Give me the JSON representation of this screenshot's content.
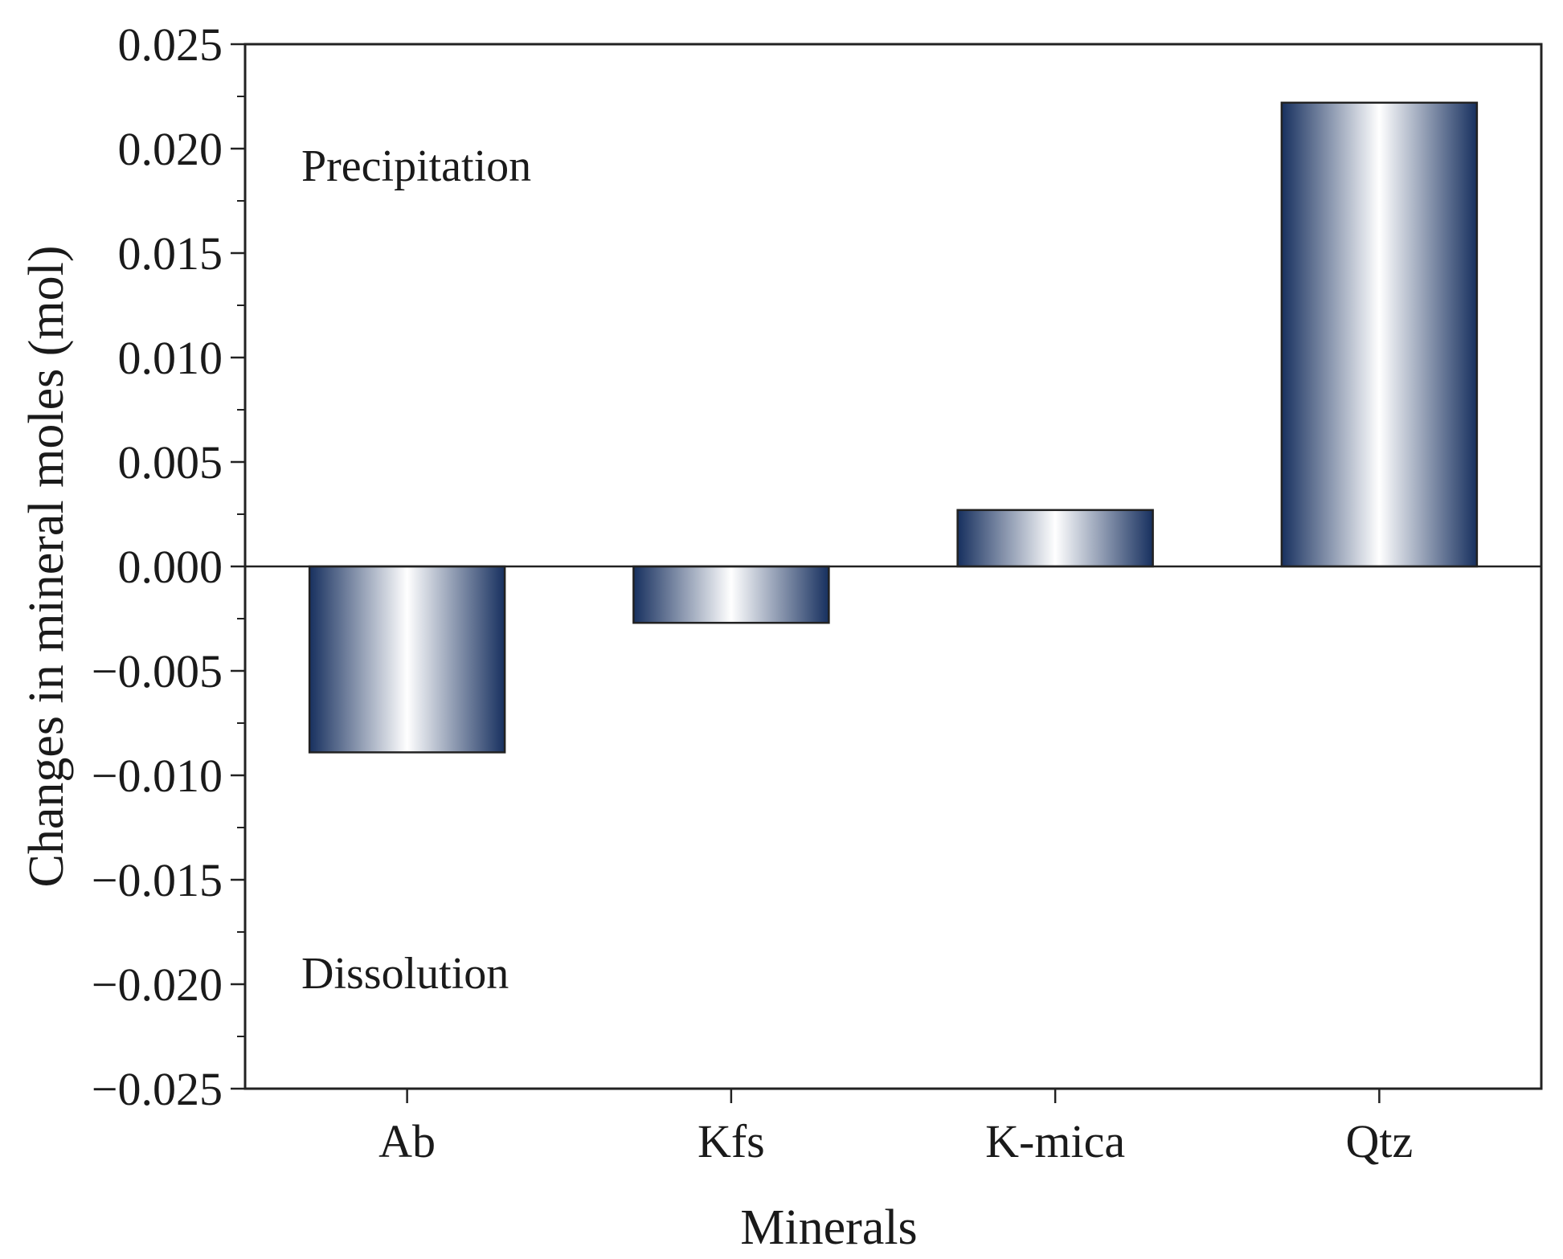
{
  "chart_data": {
    "type": "bar",
    "title": "",
    "xlabel": "Minerals",
    "ylabel": "Changes in mineral moles (mol)",
    "categories": [
      "Ab",
      "Kfs",
      "K-mica",
      "Qtz"
    ],
    "values": [
      -0.0089,
      -0.0027,
      0.0027,
      0.0222
    ],
    "ylim": [
      -0.025,
      0.025
    ],
    "yticks": [
      0.025,
      0.02,
      0.015,
      0.01,
      0.005,
      0.0,
      -0.005,
      -0.01,
      -0.015,
      -0.02,
      -0.025
    ],
    "ytick_labels": [
      "0.025",
      "0.020",
      "0.015",
      "0.010",
      "0.005",
      "0.000",
      "−0.005",
      "−0.010",
      "−0.015",
      "−0.020",
      "−0.025"
    ],
    "annotations": {
      "upper": "Precipitation",
      "lower": "Dissolution"
    },
    "grid": false,
    "bar_gradient": {
      "edge": "#17305f",
      "center": "#ffffff"
    }
  }
}
